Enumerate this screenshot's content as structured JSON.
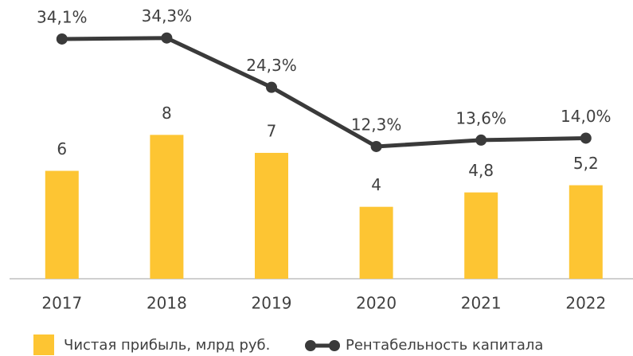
{
  "chart_data": {
    "type": "bar+line",
    "categories": [
      "2017",
      "2018",
      "2019",
      "2020",
      "2021",
      "2022"
    ],
    "series": [
      {
        "name": "Чистая прибыль, млрд руб.",
        "type": "bar",
        "color": "#fdc533",
        "values": [
          6,
          8,
          7,
          4,
          4.8,
          5.2
        ],
        "value_labels": [
          "6",
          "8",
          "7",
          "4",
          "4,8",
          "5,2"
        ]
      },
      {
        "name": "Рентабельность капитала",
        "type": "line",
        "axis": "y2",
        "color": "#3a3a3a",
        "values": [
          34.1,
          34.3,
          24.3,
          12.3,
          13.6,
          14.0
        ],
        "value_labels": [
          "34,1%",
          "34,3%",
          "24,3%",
          "12,3%",
          "13,6%",
          "14,0%"
        ]
      }
    ],
    "ylim": [
      0,
      15.5
    ],
    "y2lim": [
      -14.5,
      42
    ],
    "legend": "bottom"
  }
}
